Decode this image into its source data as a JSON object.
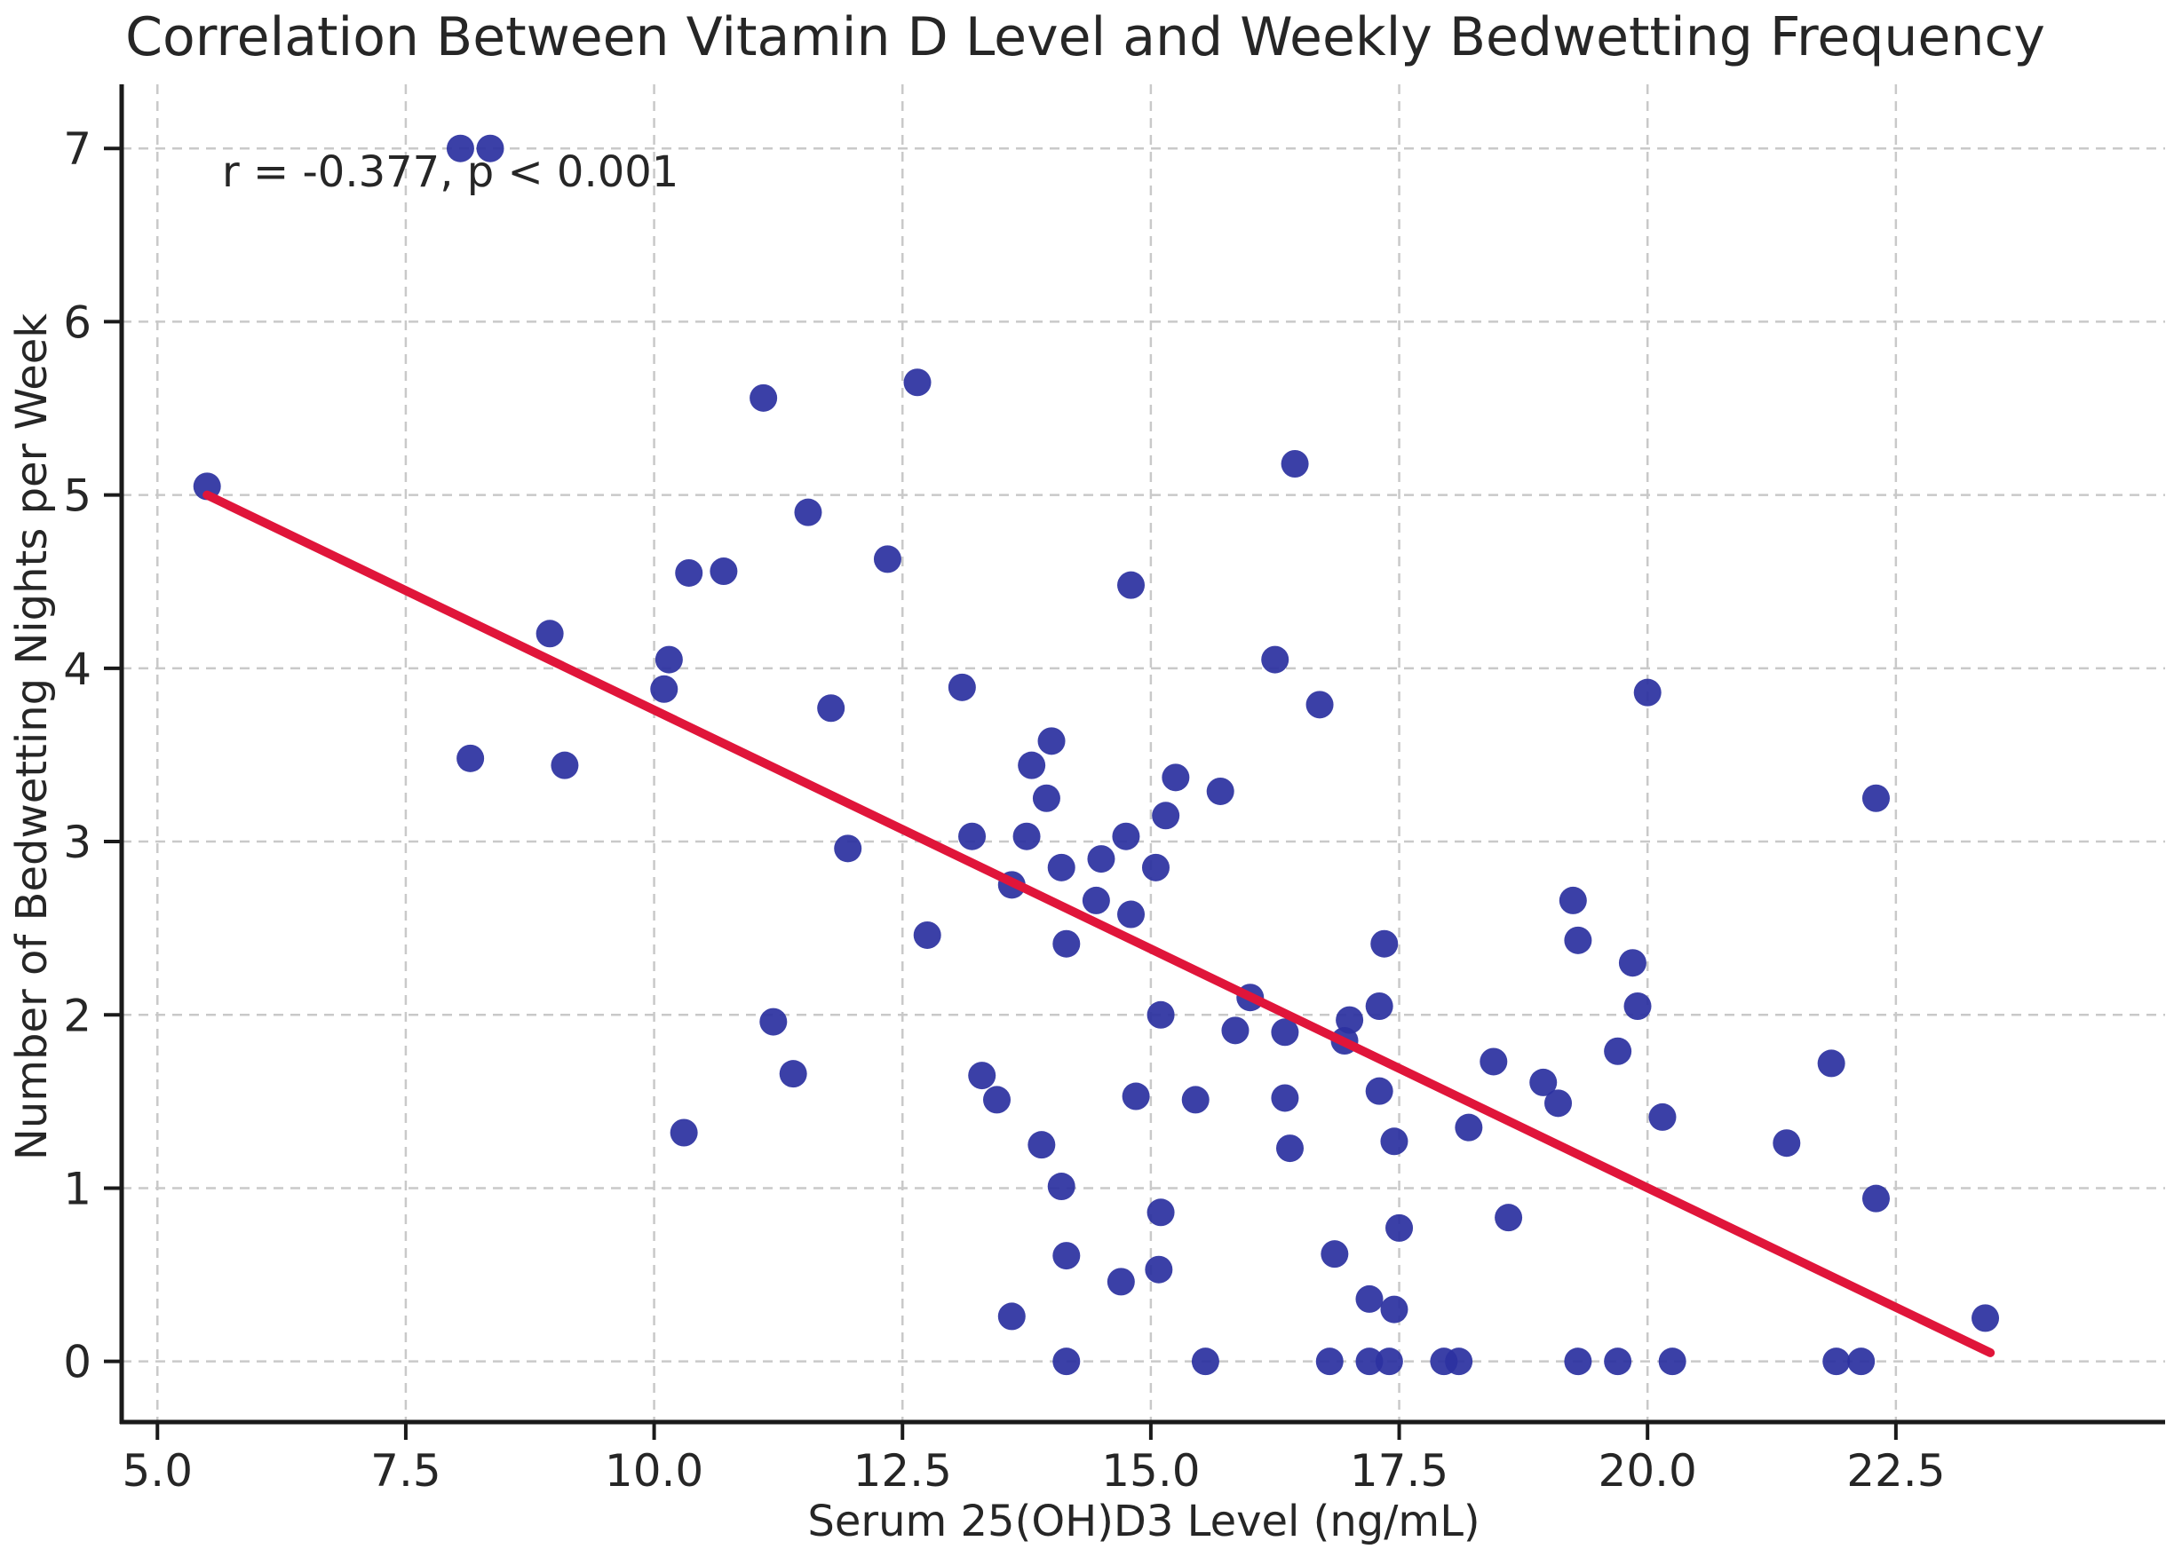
{
  "chart": {
    "title": "Correlation Between Vitamin D Level and Weekly Bedwetting Frequency",
    "annotation": "r = -0.377, p < 0.001",
    "xlabel": "Serum 25(OH)D3 Level (ng/mL)",
    "ylabel": "Number of Bedwetting Nights per Week"
  },
  "chart_data": {
    "type": "scatter",
    "title": "Correlation Between Vitamin D Level and Weekly Bedwetting Frequency",
    "annotation": "r = -0.377, p < 0.001",
    "xlabel": "Serum 25(OH)D3 Level (ng/mL)",
    "ylabel": "Number of Bedwetting Nights per Week",
    "xlim": [
      4.64,
      25.21
    ],
    "ylim": [
      -0.35,
      7.37
    ],
    "x_ticks": [
      5.0,
      7.5,
      10.0,
      12.5,
      15.0,
      17.5,
      20.0,
      22.5
    ],
    "x_tick_labels": [
      "5.0",
      "7.5",
      "10.0",
      "12.5",
      "15.0",
      "17.5",
      "20.0",
      "22.5"
    ],
    "y_ticks": [
      0,
      1,
      2,
      3,
      4,
      5,
      6,
      7
    ],
    "y_tick_labels": [
      "0",
      "1",
      "2",
      "3",
      "4",
      "5",
      "6",
      "7"
    ],
    "grid": true,
    "legend": false,
    "grid_color": "#c9c9c9",
    "spine_color": "#1a1a1a",
    "text_color": "#262626",
    "point_color": "#2c32a0",
    "trend_color": "#e0153a",
    "trend_line": {
      "x1": 5.5,
      "y1": 5.0,
      "x2": 23.45,
      "y2": 0.05
    },
    "points": [
      [
        5.5,
        5.05
      ],
      [
        8.05,
        7.0
      ],
      [
        8.35,
        7.0
      ],
      [
        8.15,
        3.48
      ],
      [
        11.1,
        5.56
      ],
      [
        12.65,
        5.65
      ],
      [
        11.55,
        4.9
      ],
      [
        8.95,
        4.2
      ],
      [
        10.35,
        4.55
      ],
      [
        10.7,
        4.56
      ],
      [
        12.35,
        4.63
      ],
      [
        10.15,
        4.05
      ],
      [
        10.1,
        3.88
      ],
      [
        11.78,
        3.77
      ],
      [
        9.1,
        3.44
      ],
      [
        11.95,
        2.96
      ],
      [
        12.75,
        2.46
      ],
      [
        11.2,
        1.96
      ],
      [
        11.4,
        1.66
      ],
      [
        10.3,
        1.32
      ],
      [
        16.45,
        5.18
      ],
      [
        14.8,
        4.48
      ],
      [
        16.25,
        4.05
      ],
      [
        13.1,
        3.89
      ],
      [
        16.7,
        3.79
      ],
      [
        14.0,
        3.58
      ],
      [
        13.8,
        3.44
      ],
      [
        15.25,
        3.37
      ],
      [
        15.7,
        3.29
      ],
      [
        13.95,
        3.25
      ],
      [
        15.15,
        3.15
      ],
      [
        13.2,
        3.03
      ],
      [
        13.75,
        3.03
      ],
      [
        14.75,
        3.03
      ],
      [
        14.5,
        2.9
      ],
      [
        14.1,
        2.85
      ],
      [
        15.05,
        2.85
      ],
      [
        13.6,
        2.75
      ],
      [
        14.45,
        2.66
      ],
      [
        14.8,
        2.58
      ],
      [
        14.15,
        2.41
      ],
      [
        15.1,
        2.0
      ],
      [
        16.0,
        2.1
      ],
      [
        15.85,
        1.91
      ],
      [
        16.35,
        1.9
      ],
      [
        13.3,
        1.65
      ],
      [
        13.45,
        1.51
      ],
      [
        14.85,
        1.53
      ],
      [
        15.45,
        1.51
      ],
      [
        16.35,
        1.52
      ],
      [
        13.9,
        1.25
      ],
      [
        16.4,
        1.23
      ],
      [
        14.1,
        1.01
      ],
      [
        15.1,
        0.86
      ],
      [
        14.15,
        0.61
      ],
      [
        14.7,
        0.46
      ],
      [
        15.08,
        0.53
      ],
      [
        13.6,
        0.26
      ],
      [
        14.15,
        0.0
      ],
      [
        15.55,
        0.0
      ],
      [
        16.8,
        0.0
      ],
      [
        16.85,
        0.62
      ],
      [
        20.0,
        3.86
      ],
      [
        19.25,
        2.66
      ],
      [
        19.3,
        2.43
      ],
      [
        19.85,
        2.3
      ],
      [
        17.35,
        2.41
      ],
      [
        17.3,
        2.05
      ],
      [
        17.0,
        1.97
      ],
      [
        16.95,
        1.85
      ],
      [
        19.9,
        2.05
      ],
      [
        19.7,
        1.79
      ],
      [
        18.45,
        1.73
      ],
      [
        18.95,
        1.61
      ],
      [
        19.1,
        1.49
      ],
      [
        17.3,
        1.56
      ],
      [
        20.15,
        1.41
      ],
      [
        18.2,
        1.35
      ],
      [
        17.45,
        1.27
      ],
      [
        17.5,
        0.77
      ],
      [
        18.6,
        0.83
      ],
      [
        17.2,
        0.36
      ],
      [
        17.45,
        0.3
      ],
      [
        17.2,
        0.0
      ],
      [
        17.4,
        0.0
      ],
      [
        17.95,
        0.0
      ],
      [
        18.1,
        0.0
      ],
      [
        19.3,
        0.0
      ],
      [
        19.7,
        0.0
      ],
      [
        20.25,
        0.0
      ],
      [
        22.3,
        3.25
      ],
      [
        21.85,
        1.72
      ],
      [
        21.4,
        1.26
      ],
      [
        22.3,
        0.94
      ],
      [
        23.4,
        0.25
      ],
      [
        21.9,
        0.0
      ],
      [
        22.15,
        0.0
      ]
    ]
  }
}
